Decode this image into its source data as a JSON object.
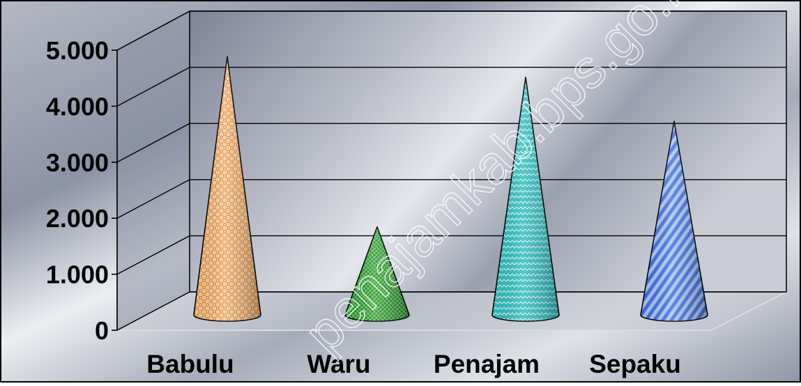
{
  "watermark": "penajamkab.bps.go.id/",
  "chart_data": {
    "type": "bar",
    "style": "3d-cone",
    "categories": [
      "Babulu",
      "Waru",
      "Penajam",
      "Sepaku"
    ],
    "values": [
      4400,
      1500,
      4050,
      3300
    ],
    "ylim": [
      0,
      5000
    ],
    "yticks": [
      0,
      1000,
      2000,
      3000,
      4000,
      5000
    ],
    "ytick_labels": [
      "0",
      "1.000",
      "2.000",
      "3.000",
      "4.000",
      "5.000"
    ],
    "grid": true,
    "legend": "none",
    "title": "",
    "xlabel": "",
    "ylabel": "",
    "colors": [
      "#f2c97a",
      "#1f8a2a",
      "#33c0c0",
      "#4f7fe0"
    ]
  }
}
